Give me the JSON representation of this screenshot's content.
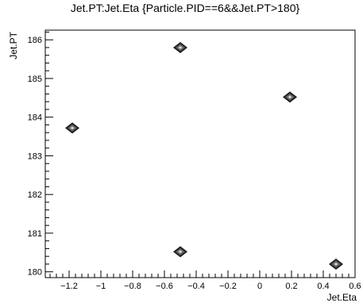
{
  "chart_data": {
    "type": "scatter",
    "title": "Jet.PT:Jet.Eta {Particle.PID==6&&Jet.PT>180}",
    "xlabel": "Jet.Eta",
    "ylabel": "Jet.PT",
    "xlim": [
      -1.35,
      0.6
    ],
    "ylim": [
      179.85,
      186.25
    ],
    "xticks": [
      -1.2,
      -1,
      -0.8,
      -0.6,
      -0.4,
      -0.2,
      0,
      0.2,
      0.4,
      0.6
    ],
    "xtick_labels": [
      "−1.2",
      "−1",
      "−0.8",
      "−0.6",
      "−0.4",
      "−0.2",
      "0",
      "0.2",
      "0.4",
      "0.6"
    ],
    "yticks": [
      180,
      181,
      182,
      183,
      184,
      185,
      186
    ],
    "ytick_labels": [
      "180",
      "181",
      "182",
      "183",
      "184",
      "185",
      "186"
    ],
    "grid": false,
    "marker": "diamond",
    "points": [
      {
        "x": -1.18,
        "y": 183.72
      },
      {
        "x": -0.5,
        "y": 185.8
      },
      {
        "x": -0.5,
        "y": 180.52
      },
      {
        "x": 0.19,
        "y": 184.52
      },
      {
        "x": 0.48,
        "y": 180.2
      }
    ]
  }
}
